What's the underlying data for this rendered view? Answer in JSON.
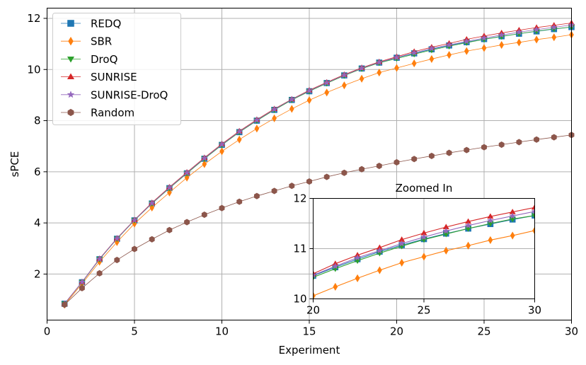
{
  "chart_data": {
    "type": "line",
    "xlabel": "Experiment",
    "ylabel": "sPCE",
    "xlim": [
      0,
      30
    ],
    "ylim": [
      0.2,
      12.4
    ],
    "xticks": [
      0,
      5,
      10,
      15,
      20,
      25,
      30
    ],
    "yticks": [
      2,
      4,
      6,
      8,
      10,
      12
    ],
    "grid": true,
    "legend_position": "top-left",
    "x": [
      1,
      2,
      3,
      4,
      5,
      6,
      7,
      8,
      9,
      10,
      11,
      12,
      13,
      14,
      15,
      16,
      17,
      18,
      19,
      20,
      21,
      22,
      23,
      24,
      25,
      26,
      27,
      28,
      29,
      30
    ],
    "series": [
      {
        "name": "REDQ",
        "color": "#1f77b4",
        "marker": "square",
        "values": [
          0.84,
          1.68,
          2.58,
          3.38,
          4.1,
          4.76,
          5.36,
          5.94,
          6.51,
          7.05,
          7.55,
          8.0,
          8.42,
          8.81,
          9.15,
          9.47,
          9.77,
          10.04,
          10.27,
          10.46,
          10.63,
          10.79,
          10.94,
          11.07,
          11.19,
          11.3,
          11.4,
          11.49,
          11.58,
          11.66
        ]
      },
      {
        "name": "SBR",
        "color": "#ff7f0e",
        "marker": "diamond",
        "values": [
          0.8,
          1.62,
          2.48,
          3.25,
          3.97,
          4.6,
          5.19,
          5.77,
          6.3,
          6.8,
          7.26,
          7.69,
          8.09,
          8.46,
          8.8,
          9.1,
          9.38,
          9.64,
          9.88,
          10.06,
          10.24,
          10.41,
          10.57,
          10.72,
          10.84,
          10.96,
          11.06,
          11.17,
          11.26,
          11.36
        ]
      },
      {
        "name": "DroQ",
        "color": "#2ca02c",
        "marker": "triangle-down",
        "values": [
          0.84,
          1.68,
          2.58,
          3.38,
          4.1,
          4.76,
          5.36,
          5.94,
          6.51,
          7.05,
          7.55,
          8.0,
          8.42,
          8.81,
          9.15,
          9.46,
          9.76,
          10.03,
          10.26,
          10.43,
          10.6,
          10.76,
          10.91,
          11.05,
          11.18,
          11.29,
          11.4,
          11.5,
          11.59,
          11.66
        ]
      },
      {
        "name": "SUNRISE",
        "color": "#d62728",
        "marker": "triangle-up",
        "values": [
          0.84,
          1.69,
          2.6,
          3.4,
          4.12,
          4.79,
          5.4,
          5.98,
          6.55,
          7.09,
          7.59,
          8.04,
          8.46,
          8.84,
          9.19,
          9.5,
          9.8,
          10.07,
          10.3,
          10.5,
          10.7,
          10.87,
          11.02,
          11.18,
          11.31,
          11.43,
          11.54,
          11.64,
          11.73,
          11.82
        ]
      },
      {
        "name": "SUNRISE-DroQ",
        "color": "#9467bd",
        "marker": "star",
        "values": [
          0.84,
          1.69,
          2.59,
          3.39,
          4.11,
          4.77,
          5.38,
          5.96,
          6.53,
          7.07,
          7.57,
          8.02,
          8.44,
          8.83,
          9.17,
          9.48,
          9.78,
          10.05,
          10.28,
          10.47,
          10.65,
          10.82,
          10.96,
          11.1,
          11.23,
          11.35,
          11.46,
          11.56,
          11.65,
          11.74
        ]
      },
      {
        "name": "Random",
        "color": "#8c564b",
        "marker": "hexagon",
        "values": [
          0.8,
          1.45,
          2.03,
          2.55,
          2.98,
          3.36,
          3.72,
          4.03,
          4.32,
          4.58,
          4.83,
          5.05,
          5.25,
          5.45,
          5.62,
          5.8,
          5.96,
          6.1,
          6.23,
          6.37,
          6.5,
          6.62,
          6.74,
          6.85,
          6.96,
          7.06,
          7.16,
          7.26,
          7.35,
          7.44
        ]
      }
    ],
    "inset": {
      "title": "Zoomed In",
      "xlim": [
        20,
        30
      ],
      "ylim": [
        10,
        12
      ],
      "xticks": [
        20,
        25,
        30
      ],
      "yticks": [
        10,
        11,
        12
      ]
    }
  }
}
